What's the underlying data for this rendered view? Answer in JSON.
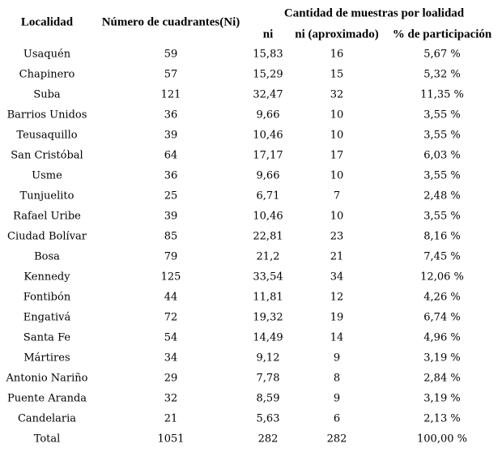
{
  "table": {
    "group_header": "Cantidad de muestras por loalidad",
    "headers": [
      "Localidad",
      "Número de cuadrantes(Ni)",
      "ni",
      "ni (aproximado)",
      "% de participación"
    ],
    "rows": [
      [
        "Usaquén",
        "59",
        "15,83",
        "16",
        "5,67 %"
      ],
      [
        "Chapinero",
        "57",
        "15,29",
        "15",
        "5,32 %"
      ],
      [
        "Suba",
        "121",
        "32,47",
        "32",
        "11,35 %"
      ],
      [
        "Barrios Unidos",
        "36",
        "9,66",
        "10",
        "3,55 %"
      ],
      [
        "Teusaquillo",
        "39",
        "10,46",
        "10",
        "3,55 %"
      ],
      [
        "San Cristóbal",
        "64",
        "17,17",
        "17",
        "6,03 %"
      ],
      [
        "Usme",
        "36",
        "9,66",
        "10",
        "3,55 %"
      ],
      [
        "Tunjuelito",
        "25",
        "6,71",
        "7",
        "2,48 %"
      ],
      [
        "Rafael Uribe",
        "39",
        "10,46",
        "10",
        "3,55 %"
      ],
      [
        "Ciudad Bolívar",
        "85",
        "22,81",
        "23",
        "8,16 %"
      ],
      [
        "Bosa",
        "79",
        "21,2",
        "21",
        "7,45 %"
      ],
      [
        "Kennedy",
        "125",
        "33,54",
        "34",
        "12,06 %"
      ],
      [
        "Fontibón",
        "44",
        "11,81",
        "12",
        "4,26 %"
      ],
      [
        "Engativá",
        "72",
        "19,32",
        "19",
        "6,74 %"
      ],
      [
        "Santa Fe",
        "54",
        "14,49",
        "14",
        "4,96 %"
      ],
      [
        "Mártires",
        "34",
        "9,12",
        "9",
        "3,19 %"
      ],
      [
        "Antonio Nariño",
        "29",
        "7,78",
        "8",
        "2,84 %"
      ],
      [
        "Puente Aranda",
        "32",
        "8,59",
        "9",
        "3,19 %"
      ],
      [
        "Candelaria",
        "21",
        "5,63",
        "6",
        "2,13 %"
      ],
      [
        "Total",
        "1051",
        "282",
        "282",
        "100,00 %"
      ]
    ]
  }
}
